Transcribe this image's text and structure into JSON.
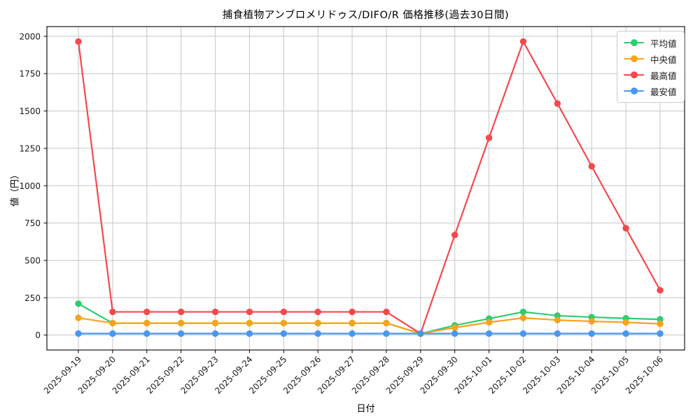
{
  "page": {
    "background": "#ffffff"
  },
  "chart_data": {
    "type": "line",
    "title": "捕食植物アンブロメリドゥス/DIFO/R 価格推移(過去30日間)",
    "xlabel": "日付",
    "ylabel": "値（円）",
    "x": [
      "2025-09-19",
      "2025-09-20",
      "2025-09-21",
      "2025-09-22",
      "2025-09-23",
      "2025-09-24",
      "2025-09-25",
      "2025-09-26",
      "2025-09-27",
      "2025-09-28",
      "2025-09-29",
      "2025-09-30",
      "2025-10-01",
      "2025-10-02",
      "2025-10-03",
      "2025-10-04",
      "2025-10-05",
      "2025-10-06"
    ],
    "series": [
      {
        "name": "平均値",
        "color": "#2ecc71",
        "values": [
          210,
          80,
          80,
          80,
          80,
          80,
          80,
          80,
          80,
          80,
          10,
          65,
          110,
          155,
          130,
          120,
          112,
          105
        ]
      },
      {
        "name": "中央値",
        "color": "#f7a41c",
        "values": [
          115,
          80,
          80,
          80,
          80,
          80,
          80,
          80,
          80,
          80,
          10,
          50,
          85,
          115,
          100,
          92,
          85,
          75
        ]
      },
      {
        "name": "最高値",
        "color": "#f4494d",
        "values": [
          1965,
          155,
          155,
          155,
          155,
          155,
          155,
          155,
          155,
          155,
          10,
          670,
          1320,
          1965,
          1550,
          1130,
          715,
          300
        ]
      },
      {
        "name": "最安値",
        "color": "#4a97f2",
        "values": [
          10,
          10,
          10,
          10,
          10,
          10,
          10,
          10,
          10,
          10,
          10,
          10,
          10,
          10,
          10,
          10,
          10,
          10
        ]
      }
    ],
    "yticks": [
      0,
      250,
      500,
      750,
      1000,
      1250,
      1500,
      1750,
      2000
    ],
    "ylim": [
      -100,
      2065
    ],
    "grid": true,
    "grid_color": "#c6c6c6",
    "axis_color": "#000000",
    "tick_label_color": "#1a1a1a",
    "legend_position": "upper right"
  }
}
